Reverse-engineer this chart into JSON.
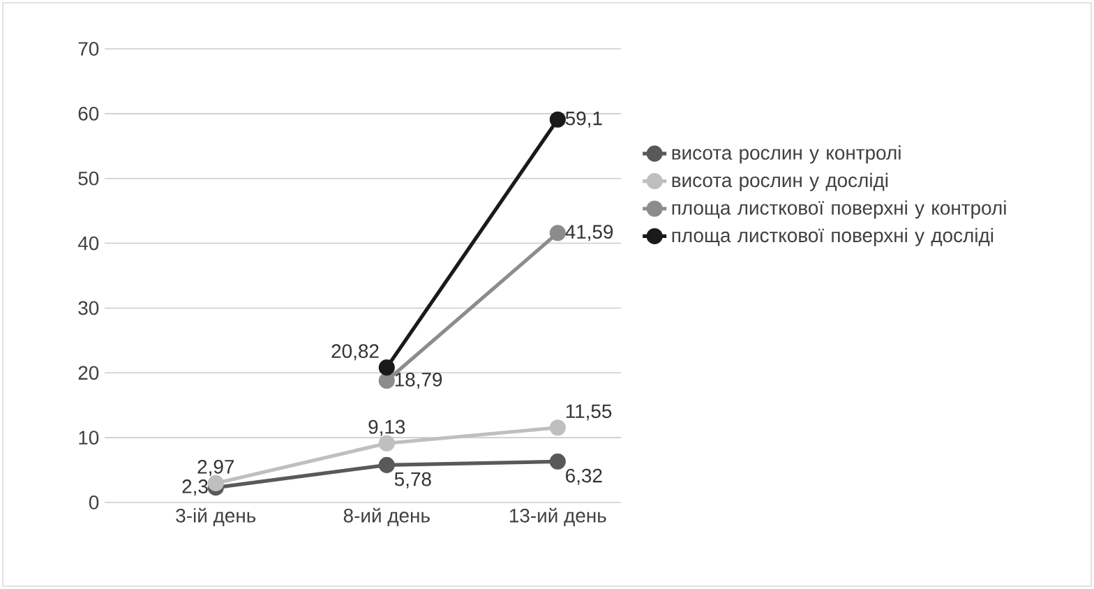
{
  "chart_data": {
    "type": "line",
    "categories": [
      "3-ій день",
      "8-ий день",
      "13-ий день"
    ],
    "series": [
      {
        "name": "висота рослин у контролі",
        "color": "#595959",
        "values": [
          2.3,
          5.78,
          6.32
        ],
        "value_labels": [
          "2,3",
          "5,78",
          "6,32"
        ]
      },
      {
        "name": "висота рослин у досліді",
        "color": "#bfbfbf",
        "values": [
          2.97,
          9.13,
          11.55
        ],
        "value_labels": [
          "2,97",
          "9,13",
          "11,55"
        ]
      },
      {
        "name": "площа листкової поверхні у контролі",
        "color": "#8c8c8c",
        "values": [
          null,
          18.79,
          41.59
        ],
        "value_labels": [
          null,
          "18,79",
          "41,59"
        ]
      },
      {
        "name": "площа листкової поверхні у досліді",
        "color": "#1a1a1a",
        "values": [
          null,
          20.82,
          59.1
        ],
        "value_labels": [
          null,
          "20,82",
          "59,1"
        ]
      }
    ],
    "ylim": [
      0,
      70
    ],
    "yticks": [
      0,
      10,
      20,
      30,
      40,
      50,
      60,
      70
    ],
    "grid": "y",
    "legend": "right",
    "marker": "circle",
    "line_style": "solid"
  }
}
